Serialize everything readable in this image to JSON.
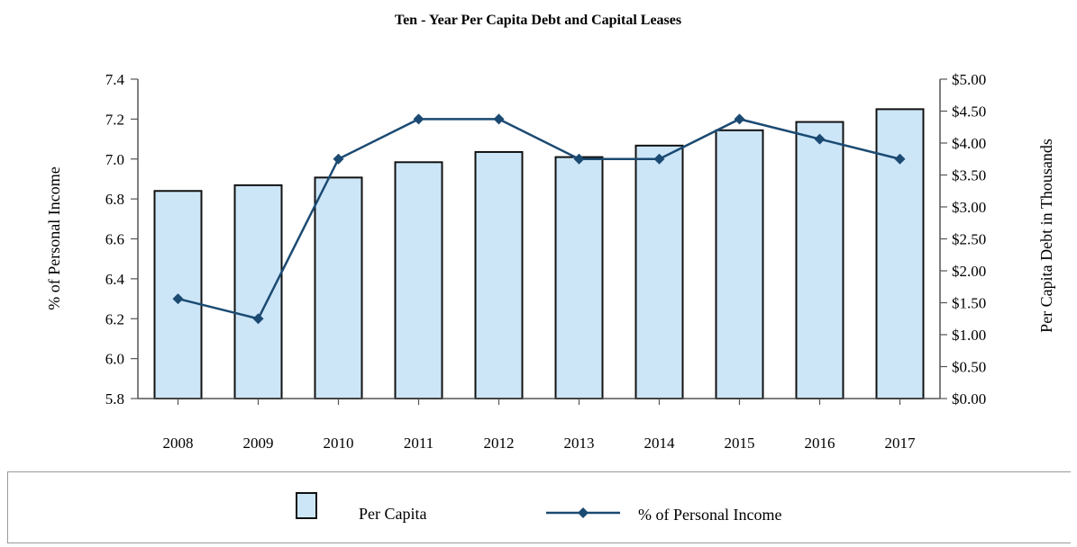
{
  "chart_data": {
    "type": "bar+line",
    "title": "Ten - Year Per Capita Debt and Capital Leases",
    "categories": [
      "2008",
      "2009",
      "2010",
      "2011",
      "2012",
      "2013",
      "2014",
      "2015",
      "2016",
      "2017"
    ],
    "series": [
      {
        "name": "Per Capita",
        "type": "bar",
        "axis": "right",
        "values": [
          3.25,
          3.34,
          3.46,
          3.7,
          3.86,
          3.78,
          3.96,
          4.2,
          4.33,
          4.53
        ],
        "fill": "#cce6f8",
        "stroke": "#111111"
      },
      {
        "name": "% of Personal Income",
        "type": "line",
        "axis": "left",
        "values": [
          6.3,
          6.2,
          7.0,
          7.2,
          7.2,
          7.0,
          7.0,
          7.2,
          7.1,
          7.0
        ],
        "color": "#1b4a72",
        "marker": "diamond"
      }
    ],
    "left_axis": {
      "label": "% of Personal Income",
      "min": 5.8,
      "max": 7.4,
      "ticks": [
        "5.8",
        "6.0",
        "6.2",
        "6.4",
        "6.6",
        "6.8",
        "7.0",
        "7.2",
        "7.4"
      ]
    },
    "right_axis": {
      "label": "Per Capita Debt in Thousands",
      "min": 0,
      "max": 5,
      "ticks": [
        "$0.00",
        "$0.50",
        "$1.00",
        "$1.50",
        "$2.00",
        "$2.50",
        "$3.00",
        "$3.50",
        "$4.00",
        "$4.50",
        "$5.00"
      ]
    },
    "grid": false,
    "legend_position": "bottom"
  }
}
